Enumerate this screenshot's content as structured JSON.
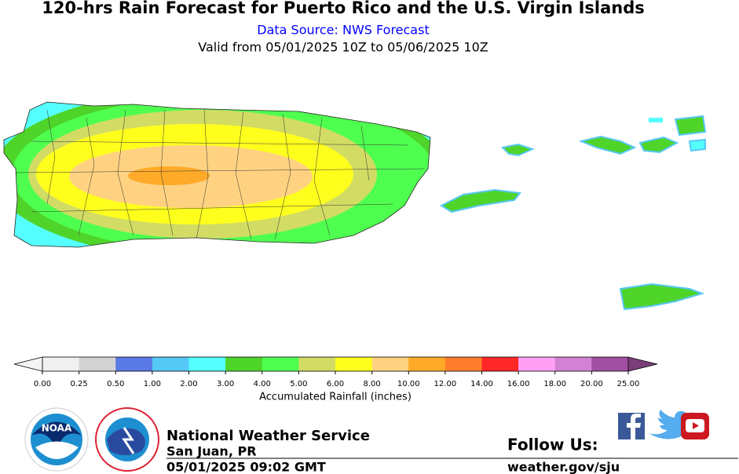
{
  "header": {
    "title": "120-hrs Rain Forecast for Puerto Rico and the U.S. Virgin Islands",
    "source": "Data Source: NWS Forecast",
    "valid": "Valid from 05/01/2025 10Z to 05/06/2025 10Z"
  },
  "colorbar": {
    "label": "Accumulated Rainfall (inches)",
    "under_color": "#f4f4f4",
    "over_color": "#7a3e7a",
    "colors": [
      "#f0f0f0",
      "#d2d2d2",
      "#5a7ae6",
      "#55c8f5",
      "#55ffff",
      "#4fd42a",
      "#4fff4f",
      "#d2dc64",
      "#ffff1e",
      "#ffd282",
      "#ffaa28",
      "#ff7d2d",
      "#ff2828",
      "#ffa0f5",
      "#d282d2",
      "#a050a0"
    ],
    "ticks": [
      {
        "value": 0,
        "label": "0.00"
      },
      {
        "value": 0.25,
        "label": "0.25"
      },
      {
        "value": 0.5,
        "label": "0.50"
      },
      {
        "value": 1,
        "label": "1.00"
      },
      {
        "value": 2,
        "label": "2.00"
      },
      {
        "value": 3,
        "label": "3.00"
      },
      {
        "value": 4,
        "label": "4.00"
      },
      {
        "value": 5,
        "label": "5.00"
      },
      {
        "value": 6,
        "label": "6.00"
      },
      {
        "value": 8,
        "label": "8.00"
      },
      {
        "value": 10,
        "label": "10.00"
      },
      {
        "value": 12,
        "label": "12.00"
      },
      {
        "value": 14,
        "label": "14.00"
      },
      {
        "value": 16,
        "label": "16.00"
      },
      {
        "value": 18,
        "label": "18.00"
      },
      {
        "value": 20,
        "label": "20.00"
      },
      {
        "value": 25,
        "label": "25.00"
      }
    ]
  },
  "footer": {
    "office": "National Weather Service",
    "location": "San Juan, PR",
    "issued": "05/01/2025 09:02 GMT",
    "follow": "Follow Us:",
    "url": "weather.gov/sju"
  }
}
